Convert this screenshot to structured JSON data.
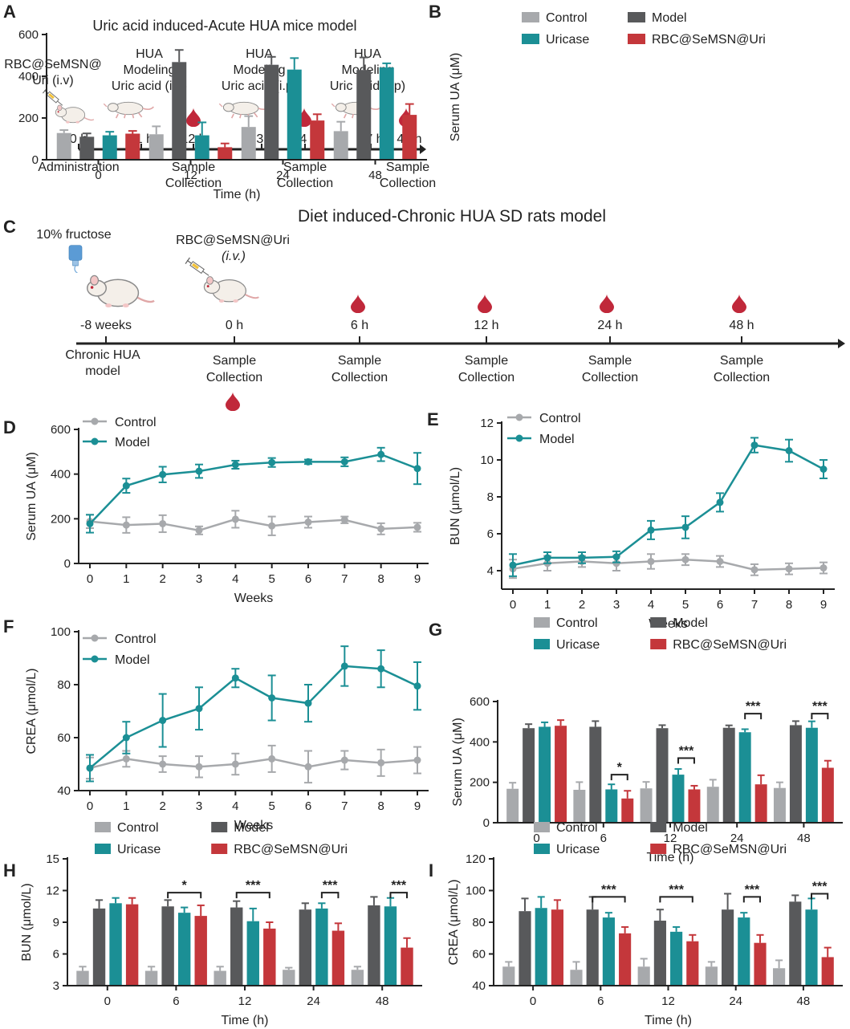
{
  "colors": {
    "control": "#a7a9ac",
    "model": "#58595b",
    "uricase": "#1b8f95",
    "rbc": "#c4373b",
    "blood": "#c0283a",
    "axis": "#222222"
  },
  "panels": {
    "A": {
      "letter": "A",
      "title": "Uric acid induced-Acute HUA mice model",
      "inject": "RBC@SeMSN@\nUri (i.v)",
      "modeling": "HUA\nModeling\nUric acid (i.p)",
      "times": [
        "0 h",
        "11 h",
        "12 h",
        "23 h",
        "24 h",
        "47 h",
        "48 h"
      ],
      "admin": "Administration",
      "sample": "Sample\nCollection"
    },
    "C": {
      "letter": "C",
      "title": "Diet induced-Chronic HUA SD rats model",
      "fructose": "10% fructose",
      "inject": "RBC@SeMSN@Uri",
      "inject_route": "i.v.",
      "times": [
        "-8 weeks",
        "0 h",
        "6 h",
        "12 h",
        "24 h",
        "48 h"
      ],
      "chronic": "Chronic HUA\nmodel",
      "sample": "Sample\nCollection"
    }
  },
  "legend_bar": [
    "Control",
    "Model",
    "Uricase",
    "RBC@SeMSN@Uri"
  ],
  "legend_line": [
    "Control",
    "Model"
  ],
  "chart_data": [
    {
      "id": "B",
      "letter": "B",
      "type": "bar",
      "xlabel": "Time (h)",
      "ylabel": "Serum UA (μM)",
      "ylim": [
        0,
        600
      ],
      "yticks": [
        0,
        200,
        400,
        600
      ],
      "categories": [
        "0",
        "12",
        "24",
        "48"
      ],
      "series": [
        {
          "name": "Control",
          "color": "control",
          "values": [
            128,
            122,
            157,
            137
          ],
          "err": [
            14,
            38,
            52,
            45
          ]
        },
        {
          "name": "Model",
          "color": "model",
          "values": [
            110,
            468,
            455,
            430
          ],
          "err": [
            16,
            58,
            38,
            60
          ]
        },
        {
          "name": "Uricase",
          "color": "uricase",
          "values": [
            117,
            117,
            432,
            442
          ],
          "err": [
            17,
            62,
            55,
            20
          ]
        },
        {
          "name": "RBC@SeMSN@Uri",
          "color": "rbc",
          "values": [
            125,
            60,
            188,
            215
          ],
          "err": [
            13,
            18,
            30,
            52
          ]
        }
      ],
      "significance": []
    },
    {
      "id": "D",
      "letter": "D",
      "type": "line",
      "xlabel": "Weeks",
      "ylabel": "Serum UA (μM)",
      "ylim": [
        0,
        600
      ],
      "yticks": [
        0,
        200,
        400,
        600
      ],
      "x": [
        0,
        1,
        2,
        3,
        4,
        5,
        6,
        7,
        8,
        9
      ],
      "series": [
        {
          "name": "Control",
          "color": "control",
          "values": [
            188,
            172,
            178,
            148,
            198,
            168,
            185,
            195,
            155,
            162
          ],
          "err": [
            30,
            35,
            38,
            18,
            38,
            42,
            25,
            15,
            25,
            20
          ]
        },
        {
          "name": "Model",
          "color": "uricase",
          "values": [
            178,
            348,
            398,
            413,
            442,
            452,
            455,
            455,
            488,
            425
          ],
          "err": [
            40,
            32,
            35,
            30,
            18,
            20,
            10,
            20,
            30,
            70
          ]
        }
      ]
    },
    {
      "id": "E",
      "letter": "E",
      "type": "line",
      "xlabel": "Weeks",
      "ylabel": "BUN (μmol/L)",
      "ylim": [
        3,
        12
      ],
      "yticks": [
        4,
        6,
        8,
        10,
        12
      ],
      "x": [
        0,
        1,
        2,
        3,
        4,
        5,
        6,
        7,
        8,
        9
      ],
      "series": [
        {
          "name": "Control",
          "color": "control",
          "values": [
            4.1,
            4.4,
            4.5,
            4.4,
            4.5,
            4.6,
            4.5,
            4.05,
            4.1,
            4.15
          ],
          "err": [
            0.5,
            0.4,
            0.3,
            0.4,
            0.4,
            0.3,
            0.3,
            0.3,
            0.3,
            0.3
          ]
        },
        {
          "name": "Model",
          "color": "uricase",
          "values": [
            4.3,
            4.7,
            4.7,
            4.75,
            6.2,
            6.35,
            7.7,
            10.8,
            10.5,
            9.5
          ],
          "err": [
            0.6,
            0.3,
            0.3,
            0.3,
            0.5,
            0.6,
            0.5,
            0.4,
            0.6,
            0.5
          ]
        }
      ]
    },
    {
      "id": "F",
      "letter": "F",
      "type": "line",
      "xlabel": "Weeks",
      "ylabel": "CREA (μmol/L)",
      "ylim": [
        40,
        100
      ],
      "yticks": [
        40,
        60,
        80,
        100
      ],
      "x": [
        0,
        1,
        2,
        3,
        4,
        5,
        6,
        7,
        8,
        9
      ],
      "series": [
        {
          "name": "Control",
          "color": "control",
          "values": [
            48.5,
            52,
            50,
            49,
            50,
            52,
            49,
            51.5,
            50.5,
            51.5
          ],
          "err": [
            4,
            3,
            3,
            4,
            4,
            5,
            6,
            3.5,
            5,
            5
          ]
        },
        {
          "name": "Model",
          "color": "uricase",
          "values": [
            48.5,
            60,
            66.5,
            71,
            82.5,
            75,
            73,
            87,
            86,
            79.5
          ],
          "err": [
            5,
            6,
            10,
            8,
            3.5,
            8.5,
            7,
            7.5,
            7,
            9
          ]
        }
      ]
    },
    {
      "id": "G",
      "letter": "G",
      "type": "bar",
      "xlabel": "Time (h)",
      "ylabel": "Serum UA (μM)",
      "ylim": [
        0,
        600
      ],
      "yticks": [
        0,
        200,
        400,
        600
      ],
      "categories": [
        "0",
        "6",
        "12",
        "24",
        "48"
      ],
      "series": [
        {
          "name": "Control",
          "color": "control",
          "values": [
            168,
            163,
            170,
            178,
            172
          ],
          "err": [
            30,
            38,
            32,
            35,
            28
          ]
        },
        {
          "name": "Model",
          "color": "model",
          "values": [
            468,
            475,
            468,
            470,
            483
          ],
          "err": [
            20,
            28,
            15,
            12,
            20
          ]
        },
        {
          "name": "Uricase",
          "color": "uricase",
          "values": [
            475,
            165,
            238,
            448,
            470
          ],
          "err": [
            22,
            25,
            28,
            15,
            32
          ]
        },
        {
          "name": "RBC@SeMSN@Uri",
          "color": "rbc",
          "values": [
            480,
            120,
            165,
            190,
            272
          ],
          "err": [
            28,
            38,
            18,
            45,
            35
          ]
        }
      ],
      "significance": [
        {
          "cat": 1,
          "from": 2,
          "to": 3,
          "y": 238,
          "label": "*"
        },
        {
          "cat": 2,
          "from": 2,
          "to": 3,
          "y": 320,
          "label": "***"
        },
        {
          "cat": 3,
          "from": 2,
          "to": 3,
          "y": 540,
          "label": "***"
        },
        {
          "cat": 4,
          "from": 2,
          "to": 3,
          "y": 540,
          "label": "***"
        }
      ]
    },
    {
      "id": "H",
      "letter": "H",
      "type": "bar",
      "xlabel": "Time (h)",
      "ylabel": "BUN (μmol/L)",
      "ylim": [
        3,
        15
      ],
      "yticks": [
        3,
        6,
        9,
        12,
        15
      ],
      "categories": [
        "0",
        "6",
        "12",
        "24",
        "48"
      ],
      "series": [
        {
          "name": "Control",
          "color": "control",
          "values": [
            4.4,
            4.4,
            4.4,
            4.5,
            4.5
          ],
          "err": [
            0.4,
            0.4,
            0.4,
            0.2,
            0.3
          ]
        },
        {
          "name": "Model",
          "color": "model",
          "values": [
            10.3,
            10.5,
            10.4,
            10.2,
            10.6
          ],
          "err": [
            0.8,
            0.6,
            0.6,
            0.6,
            0.8
          ]
        },
        {
          "name": "Uricase",
          "color": "uricase",
          "values": [
            10.8,
            9.9,
            9.1,
            10.3,
            10.5
          ],
          "err": [
            0.5,
            0.5,
            1.2,
            0.5,
            0.8
          ]
        },
        {
          "name": "RBC@SeMSN@Uri",
          "color": "rbc",
          "values": [
            10.7,
            9.6,
            8.4,
            8.2,
            6.6
          ],
          "err": [
            0.6,
            1.0,
            0.6,
            0.7,
            0.9
          ]
        }
      ],
      "significance": [
        {
          "cat": 1,
          "from": 1,
          "to": 3,
          "y": 11.8,
          "label": "*"
        },
        {
          "cat": 2,
          "from": 1,
          "to": 3,
          "y": 11.8,
          "label": "***"
        },
        {
          "cat": 3,
          "from": 2,
          "to": 3,
          "y": 11.8,
          "label": "***"
        },
        {
          "cat": 4,
          "from": 2,
          "to": 3,
          "y": 11.8,
          "label": "***"
        }
      ]
    },
    {
      "id": "I",
      "letter": "I",
      "type": "bar",
      "xlabel": "Time (h)",
      "ylabel": "CREA (μmol/L)",
      "ylim": [
        40,
        120
      ],
      "yticks": [
        40,
        60,
        80,
        100,
        120
      ],
      "categories": [
        "0",
        "6",
        "12",
        "24",
        "48"
      ],
      "series": [
        {
          "name": "Control",
          "color": "control",
          "values": [
            52,
            50,
            52,
            52,
            51
          ],
          "err": [
            3,
            5,
            5,
            3,
            5
          ]
        },
        {
          "name": "Model",
          "color": "model",
          "values": [
            87,
            88,
            81,
            88,
            93
          ],
          "err": [
            8,
            8,
            7,
            10,
            4
          ]
        },
        {
          "name": "Uricase",
          "color": "uricase",
          "values": [
            89,
            83,
            74,
            83,
            88
          ],
          "err": [
            7,
            3,
            3,
            3,
            7
          ]
        },
        {
          "name": "RBC@SeMSN@Uri",
          "color": "rbc",
          "values": [
            88,
            73,
            68,
            67,
            58
          ],
          "err": [
            6,
            4,
            4,
            5,
            6
          ]
        }
      ],
      "significance": [
        {
          "cat": 1,
          "from": 1,
          "to": 3,
          "y": 96,
          "label": "***"
        },
        {
          "cat": 2,
          "from": 1,
          "to": 3,
          "y": 96,
          "label": "***"
        },
        {
          "cat": 3,
          "from": 2,
          "to": 3,
          "y": 96,
          "label": "***"
        },
        {
          "cat": 4,
          "from": 2,
          "to": 3,
          "y": 98,
          "label": "***"
        }
      ]
    }
  ]
}
